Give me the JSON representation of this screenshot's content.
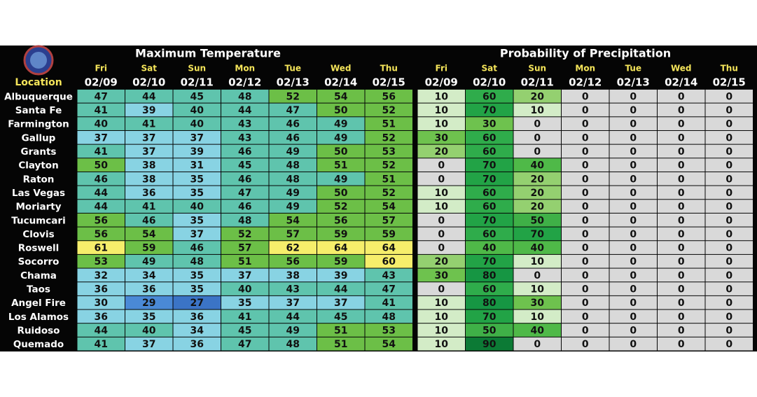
{
  "header": {
    "temperature_title": "Maximum Temperature",
    "precip_title": "Probability of Precipitation",
    "location_label": "Location"
  },
  "days": [
    {
      "day": "Fri",
      "date": "02/09"
    },
    {
      "day": "Sat",
      "date": "02/10"
    },
    {
      "day": "Sun",
      "date": "02/11"
    },
    {
      "day": "Mon",
      "date": "02/12"
    },
    {
      "day": "Tue",
      "date": "02/13"
    },
    {
      "day": "Wed",
      "date": "02/14"
    },
    {
      "day": "Thu",
      "date": "02/15"
    }
  ],
  "rows": [
    {
      "location": "Albuquerque",
      "temps": [
        47,
        44,
        45,
        48,
        52,
        54,
        56
      ],
      "pop": [
        10,
        60,
        20,
        0,
        0,
        0,
        0
      ]
    },
    {
      "location": "Santa Fe",
      "temps": [
        41,
        39,
        40,
        44,
        47,
        50,
        52
      ],
      "pop": [
        10,
        70,
        10,
        0,
        0,
        0,
        0
      ]
    },
    {
      "location": "Farmington",
      "temps": [
        40,
        41,
        40,
        43,
        46,
        49,
        51
      ],
      "pop": [
        10,
        30,
        0,
        0,
        0,
        0,
        0
      ]
    },
    {
      "location": "Gallup",
      "temps": [
        37,
        37,
        37,
        43,
        46,
        49,
        52
      ],
      "pop": [
        30,
        60,
        0,
        0,
        0,
        0,
        0
      ]
    },
    {
      "location": "Grants",
      "temps": [
        41,
        37,
        39,
        46,
        49,
        50,
        53
      ],
      "pop": [
        20,
        60,
        0,
        0,
        0,
        0,
        0
      ]
    },
    {
      "location": "Clayton",
      "temps": [
        50,
        38,
        31,
        45,
        48,
        51,
        52
      ],
      "pop": [
        0,
        70,
        40,
        0,
        0,
        0,
        0
      ]
    },
    {
      "location": "Raton",
      "temps": [
        46,
        38,
        35,
        46,
        48,
        49,
        51
      ],
      "pop": [
        0,
        70,
        20,
        0,
        0,
        0,
        0
      ]
    },
    {
      "location": "Las Vegas",
      "temps": [
        44,
        36,
        35,
        47,
        49,
        50,
        52
      ],
      "pop": [
        10,
        60,
        20,
        0,
        0,
        0,
        0
      ]
    },
    {
      "location": "Moriarty",
      "temps": [
        44,
        41,
        40,
        46,
        49,
        52,
        54
      ],
      "pop": [
        10,
        60,
        20,
        0,
        0,
        0,
        0
      ]
    },
    {
      "location": "Tucumcari",
      "temps": [
        56,
        46,
        35,
        48,
        54,
        56,
        57
      ],
      "pop": [
        0,
        70,
        50,
        0,
        0,
        0,
        0
      ]
    },
    {
      "location": "Clovis",
      "temps": [
        56,
        54,
        37,
        52,
        57,
        59,
        59
      ],
      "pop": [
        0,
        60,
        70,
        0,
        0,
        0,
        0
      ]
    },
    {
      "location": "Roswell",
      "temps": [
        61,
        59,
        46,
        57,
        62,
        64,
        64
      ],
      "pop": [
        0,
        40,
        40,
        0,
        0,
        0,
        0
      ]
    },
    {
      "location": "Socorro",
      "temps": [
        53,
        49,
        48,
        51,
        56,
        59,
        60
      ],
      "pop": [
        20,
        70,
        10,
        0,
        0,
        0,
        0
      ]
    },
    {
      "location": "Chama",
      "temps": [
        32,
        34,
        35,
        37,
        38,
        39,
        43
      ],
      "pop": [
        30,
        80,
        0,
        0,
        0,
        0,
        0
      ]
    },
    {
      "location": "Taos",
      "temps": [
        36,
        36,
        35,
        40,
        43,
        44,
        47
      ],
      "pop": [
        0,
        60,
        10,
        0,
        0,
        0,
        0
      ]
    },
    {
      "location": "Angel Fire",
      "temps": [
        30,
        29,
        27,
        35,
        37,
        37,
        41
      ],
      "pop": [
        10,
        80,
        30,
        0,
        0,
        0,
        0
      ]
    },
    {
      "location": "Los Alamos",
      "temps": [
        36,
        35,
        36,
        41,
        44,
        45,
        48
      ],
      "pop": [
        10,
        70,
        10,
        0,
        0,
        0,
        0
      ]
    },
    {
      "location": "Ruidoso",
      "temps": [
        44,
        40,
        34,
        45,
        49,
        51,
        53
      ],
      "pop": [
        10,
        50,
        40,
        0,
        0,
        0,
        0
      ]
    },
    {
      "location": "Quemado",
      "temps": [
        41,
        37,
        36,
        47,
        48,
        51,
        54
      ],
      "pop": [
        10,
        90,
        0,
        0,
        0,
        0,
        0
      ]
    }
  ],
  "temperature_colors": [
    {
      "min": 60,
      "color": "#f6ee6b"
    },
    {
      "min": 50,
      "color": "#6cbf47"
    },
    {
      "min": 40,
      "color": "#5fc4ad"
    },
    {
      "min": 30,
      "color": "#88d3e3"
    },
    {
      "min": 28,
      "color": "#4a89d6"
    },
    {
      "min": -100,
      "color": "#3b74c6"
    }
  ],
  "precip_colors": [
    {
      "min": 90,
      "color": "#0c7a35"
    },
    {
      "min": 80,
      "color": "#169643"
    },
    {
      "min": 70,
      "color": "#22a346"
    },
    {
      "min": 60,
      "color": "#2fac4b"
    },
    {
      "min": 50,
      "color": "#3fb047"
    },
    {
      "min": 40,
      "color": "#4fb948"
    },
    {
      "min": 30,
      "color": "#6ec24e"
    },
    {
      "min": 20,
      "color": "#94d070"
    },
    {
      "min": 10,
      "color": "#d3ecc7"
    },
    {
      "min": 0,
      "color": "#d9d9d9"
    }
  ]
}
